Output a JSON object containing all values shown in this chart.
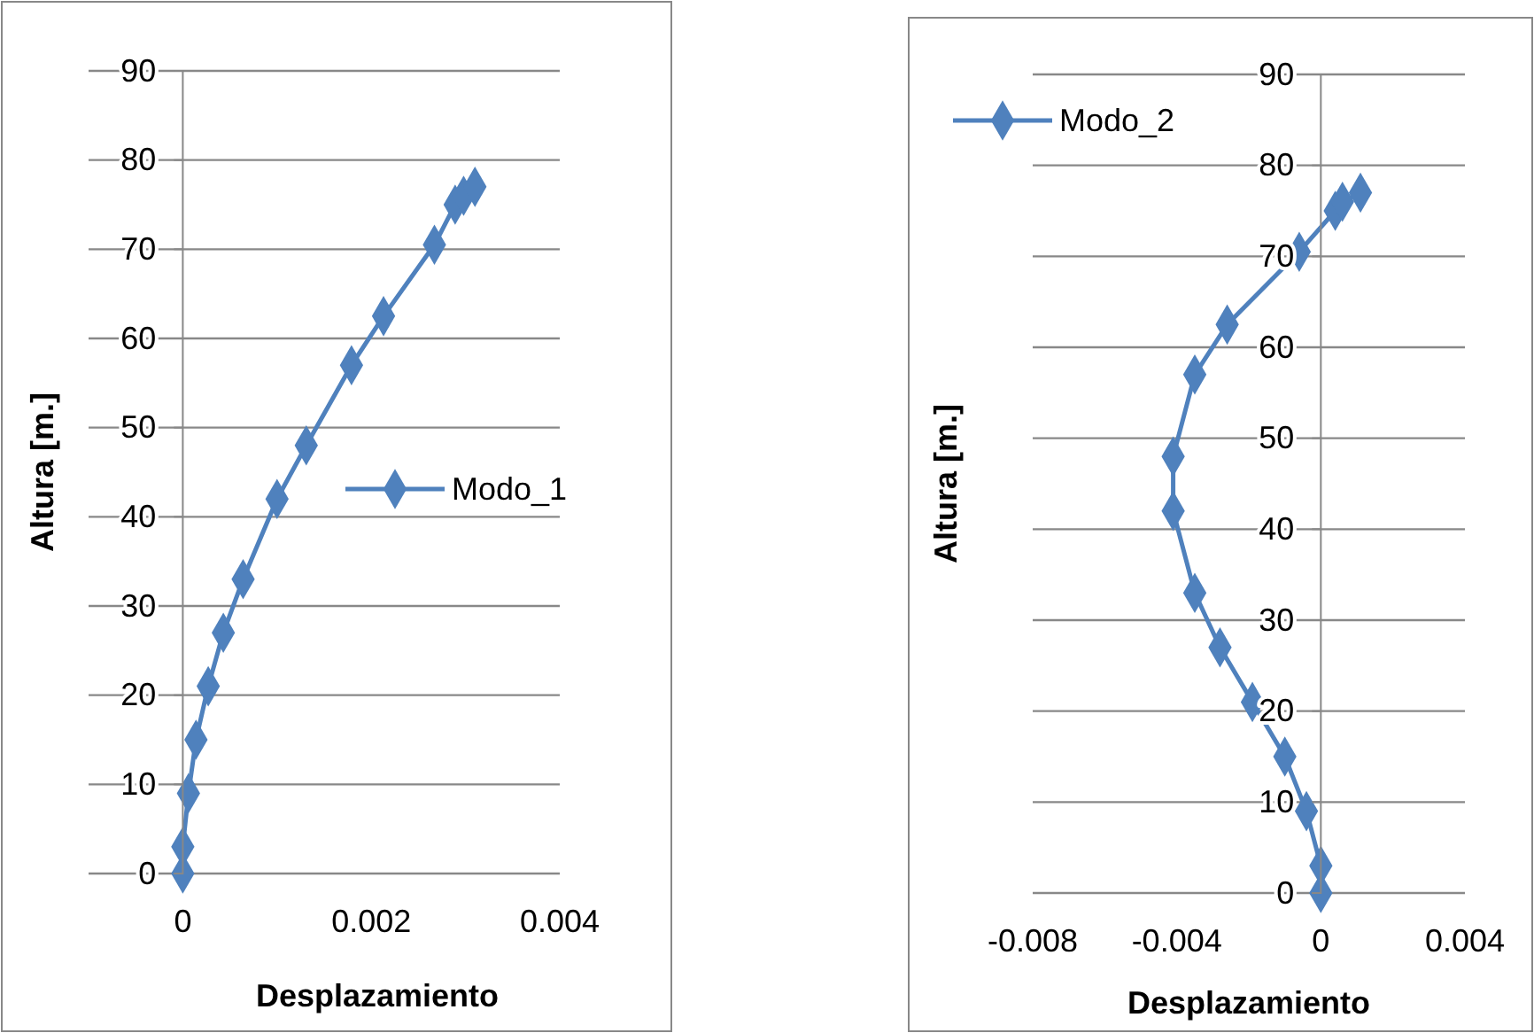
{
  "chart_data": [
    {
      "type": "line",
      "xlabel": "Desplazamiento",
      "ylabel": "Altura [m.]",
      "xlim": [
        -0.001,
        0.004
      ],
      "xticks": [
        0,
        0.002,
        0.004
      ],
      "ylim": [
        0,
        90
      ],
      "yticks": [
        0,
        10,
        20,
        30,
        40,
        50,
        60,
        70,
        80,
        90
      ],
      "grid": "y",
      "legend": "right",
      "marker": "diamond",
      "line_style": "solid",
      "series": [
        {
          "name": "Modo_1",
          "color": "#4f81bd",
          "x": [
            0,
            0,
            6e-05,
            0.00014,
            0.00027,
            0.00043,
            0.00064,
            0.001,
            0.00131,
            0.00179,
            0.00213,
            0.00267,
            0.00289,
            0.00298,
            0.0031
          ],
          "values": [
            0,
            3,
            9,
            15,
            21,
            27,
            33,
            42,
            48,
            57,
            62.5,
            70.5,
            75,
            76,
            77
          ]
        }
      ]
    },
    {
      "type": "line",
      "xlabel": "Desplazamiento",
      "ylabel": "Altura [m.]",
      "xlim": [
        -0.008,
        0.004
      ],
      "xticks": [
        -0.008,
        -0.004,
        0,
        0.004
      ],
      "ylim": [
        0,
        90
      ],
      "yticks": [
        0,
        10,
        20,
        30,
        40,
        50,
        60,
        70,
        80,
        90
      ],
      "grid": "y",
      "legend": "top left",
      "marker": "diamond",
      "line_style": "solid",
      "series": [
        {
          "name": "Modo_2",
          "color": "#4f81bd",
          "x": [
            0,
            0,
            -0.0004,
            -0.001,
            -0.0019,
            -0.0028,
            -0.0035,
            -0.0041,
            -0.0041,
            -0.0035,
            -0.0026,
            -0.0006,
            0.0004,
            0.0006,
            0.0011
          ],
          "values": [
            0,
            3,
            9,
            15,
            21,
            27,
            33,
            42,
            48,
            57,
            62.5,
            70.5,
            75,
            76,
            77
          ]
        }
      ]
    }
  ]
}
